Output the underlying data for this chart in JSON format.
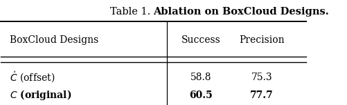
{
  "title_normal": "Table 1. ",
  "title_bold": "Ablation on BoxCloud Designs.",
  "col_headers": [
    "BoxCloud Designs",
    "Success",
    "Precision"
  ],
  "rows": [
    [
      "offset",
      "58.8",
      "75.3"
    ],
    [
      "original",
      "60.5",
      "77.7"
    ]
  ],
  "bold_rows": [
    1
  ],
  "background_color": "#ffffff",
  "text_color": "#000000",
  "figsize": [
    5.02,
    1.52
  ],
  "dpi": 100
}
